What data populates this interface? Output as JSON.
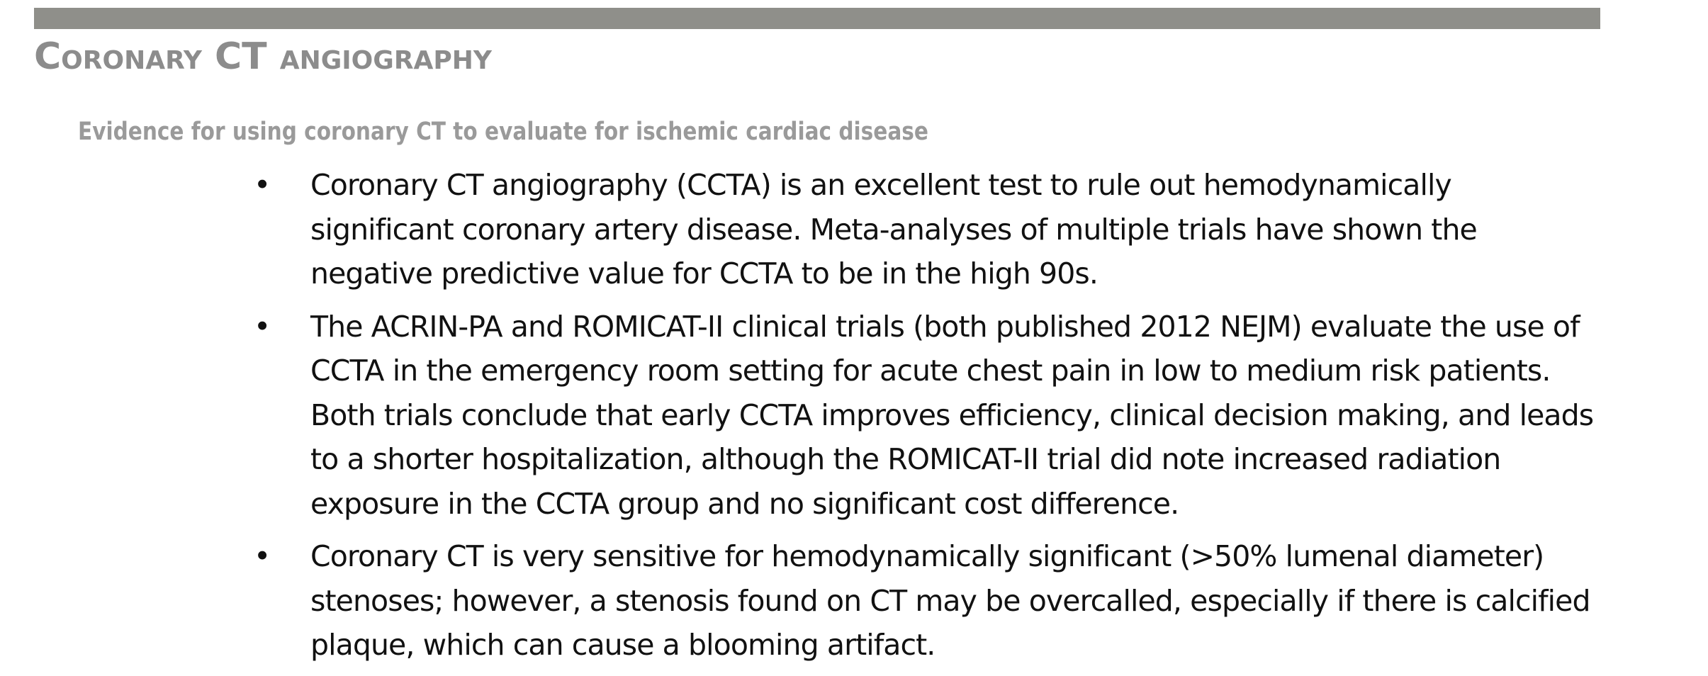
{
  "page": {
    "title": "Coronary CT angiography",
    "subtitle": "Evidence for using coronary CT to evaluate for ischemic cardiac disease",
    "bullet_symbol": "•",
    "bullets": [
      "Coronary CT angiography (CCTA) is an excellent test to rule out hemodynamically significant coronary artery disease. Meta-analyses of multiple trials have shown the negative predictive value for CCTA to be in the high 90s.",
      "The ACRIN-PA and ROMICAT-II clinical trials (both published 2012 NEJM) evaluate the use of CCTA in the emergency room setting for acute chest pain in low to medium risk patients. Both trials conclude that early CCTA improves efficiency, clinical decision making, and leads to a shorter hospitalization, although the ROMICAT-II trial did note increased radiation exposure in the CCTA group and no significant cost difference.",
      "Coronary CT is very sensitive for hemodynamically significant (>50% lumenal diameter) stenoses; however, a stenosis found on CT may be overcalled, especially if there is calcified plaque, which can cause a blooming artifact."
    ]
  },
  "colors": {
    "rule": "#8f8f8a",
    "title": "#8c8c8c",
    "subtitle": "#9a9a9a",
    "body_text": "#111111"
  }
}
